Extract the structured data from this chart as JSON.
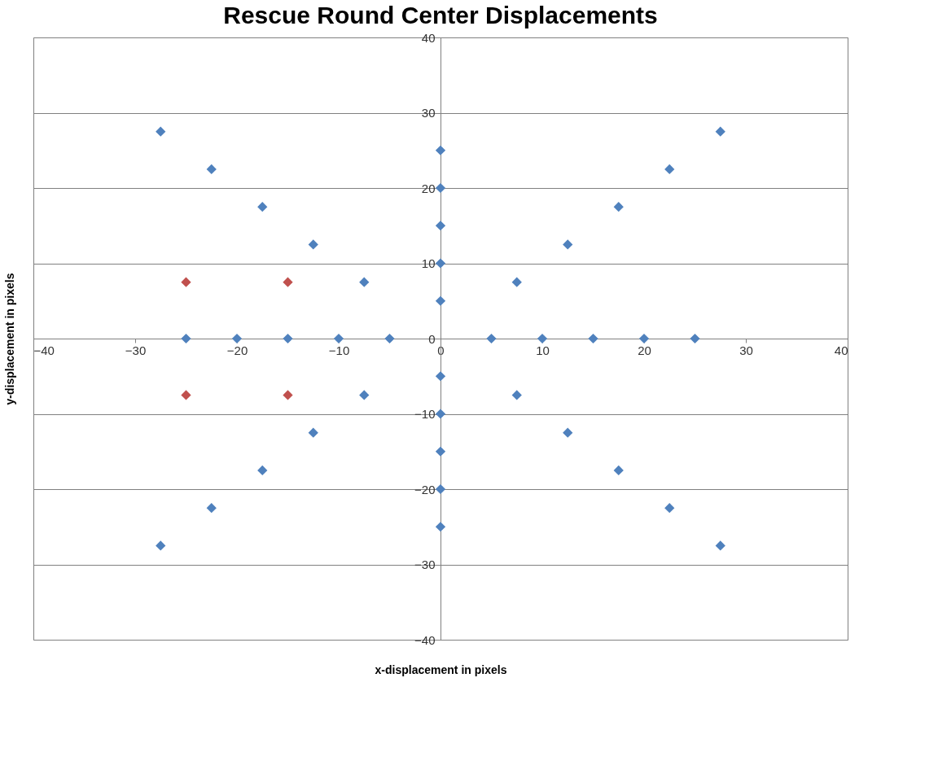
{
  "chart_data": {
    "type": "scatter",
    "title": "Rescue Round Center Displacements",
    "xlabel": "x-displacement  in pixels",
    "ylabel": "y-displacement  in pixels",
    "xlim": [
      -40,
      40
    ],
    "ylim": [
      -40,
      40
    ],
    "xticks": [
      -40,
      -30,
      -20,
      -10,
      0,
      10,
      20,
      30,
      40
    ],
    "yticks": [
      -40,
      -30,
      -20,
      -10,
      0,
      10,
      20,
      30,
      40
    ],
    "grid": "y",
    "legend": false,
    "marker": "diamond",
    "series": [
      {
        "color": "#4f81bd",
        "x": [
          -27.5,
          -22.5,
          -17.5,
          -12.5,
          -7.5,
          27.5,
          22.5,
          17.5,
          12.5,
          7.5,
          -27.5,
          -22.5,
          -17.5,
          -12.5,
          -7.5,
          27.5,
          22.5,
          17.5,
          12.5,
          7.5,
          -25,
          -20,
          -15,
          -10,
          -5,
          5,
          10,
          15,
          20,
          25,
          0,
          0,
          0,
          0,
          0,
          0,
          0,
          0,
          0,
          0
        ],
        "values": [
          27.5,
          22.5,
          17.5,
          12.5,
          7.5,
          27.5,
          22.5,
          17.5,
          12.5,
          7.5,
          -27.5,
          -22.5,
          -17.5,
          -12.5,
          -7.5,
          -27.5,
          -22.5,
          -17.5,
          -12.5,
          -7.5,
          0,
          0,
          0,
          0,
          0,
          0,
          0,
          0,
          0,
          0,
          25,
          20,
          15,
          10,
          5,
          -5,
          -10,
          -15,
          -20,
          -25
        ]
      },
      {
        "color": "#c0504d",
        "x": [
          -25,
          -15,
          -25,
          -15
        ],
        "values": [
          7.5,
          7.5,
          -7.5,
          -7.5
        ]
      }
    ]
  }
}
